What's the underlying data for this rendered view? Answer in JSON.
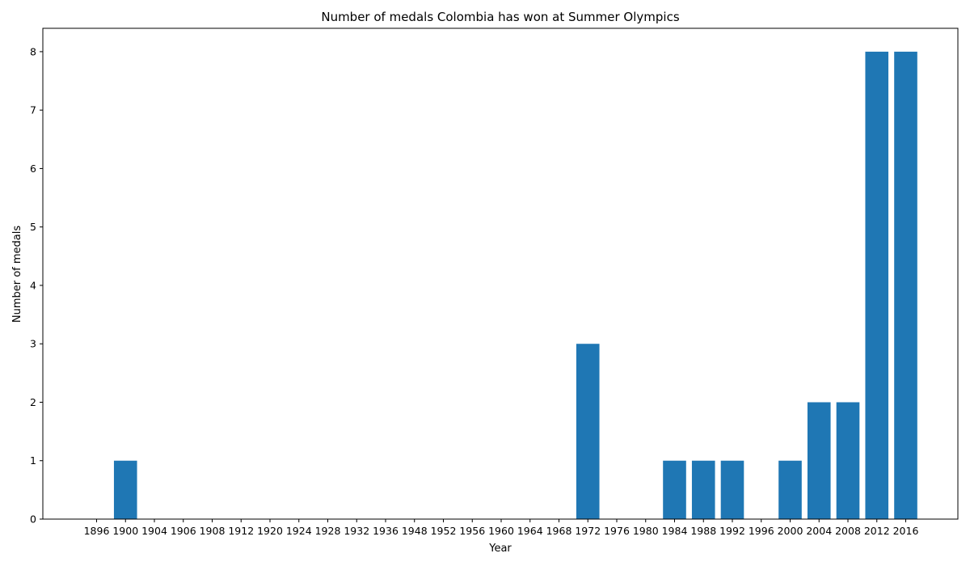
{
  "chart_data": {
    "type": "bar",
    "title": "Number of medals Colombia has won at Summer Olympics",
    "xlabel": "Year",
    "ylabel": "Number of medals",
    "categories": [
      "1896",
      "1900",
      "1904",
      "1906",
      "1908",
      "1912",
      "1920",
      "1924",
      "1928",
      "1932",
      "1936",
      "1948",
      "1952",
      "1956",
      "1960",
      "1964",
      "1968",
      "1972",
      "1976",
      "1980",
      "1984",
      "1988",
      "1992",
      "1996",
      "2000",
      "2004",
      "2008",
      "2012",
      "2016"
    ],
    "values": [
      0,
      1,
      0,
      0,
      0,
      0,
      0,
      0,
      0,
      0,
      0,
      0,
      0,
      0,
      0,
      0,
      0,
      3,
      0,
      0,
      1,
      1,
      1,
      0,
      1,
      2,
      2,
      8,
      8
    ],
    "ylim": [
      0,
      8.4
    ],
    "yticks": [
      0,
      1,
      2,
      3,
      4,
      5,
      6,
      7,
      8
    ],
    "bar_color": "#1f77b4",
    "grid": false,
    "legend": "none"
  }
}
